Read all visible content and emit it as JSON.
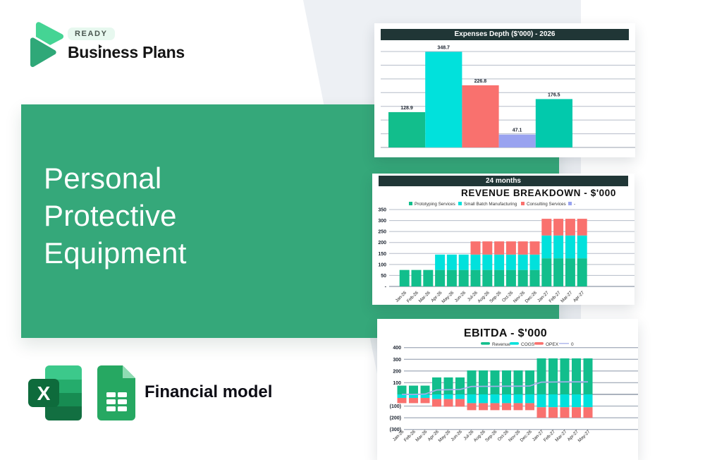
{
  "brand": {
    "badge": "READY",
    "name": "Business Plans"
  },
  "hero": {
    "title_lines": [
      "Personal",
      "Protective",
      "Equipment"
    ]
  },
  "footer": {
    "label": "Financial model",
    "icons": [
      "excel-icon",
      "google-sheets-icon"
    ]
  },
  "colors": {
    "panel_green": "#35a87a",
    "header_dark": "#203636",
    "background_gray": "#edf0f4",
    "bar_green": "#12be8c",
    "bar_cyan": "#01e1dc",
    "bar_red": "#f9716e",
    "bar_periwinkle": "#99a3f0",
    "bar_teal": "#02c9ac",
    "line_blue": "#a5aeea"
  },
  "chart_data": [
    {
      "type": "bar",
      "title": "Expenses Depth ($'000) - 2026",
      "values": [
        128.9,
        348.7,
        226.8,
        47.1,
        176.5
      ],
      "data_labels": [
        "128.9",
        "348.7",
        "226.8",
        "47.1",
        "176.5"
      ],
      "colors": [
        "#12be8c",
        "#01e1dc",
        "#f9716e",
        "#99a3f0",
        "#02c9ac"
      ],
      "ylim": [
        0,
        350
      ],
      "grid_step": 50,
      "grid": true,
      "legend": "none"
    },
    {
      "type": "bar-stacked",
      "header": "24 months",
      "title": "REVENUE BREAKDOWN - $'000",
      "categories": [
        "Jan-26",
        "Feb-26",
        "Mar-26",
        "Apr-26",
        "May-26",
        "Jun-26",
        "Jul-26",
        "Aug-26",
        "Sep-26",
        "Oct-26",
        "Nov-26",
        "Dec-26",
        "Jan-27",
        "Feb-27",
        "Mar-27",
        "Apr-27"
      ],
      "series": [
        {
          "name": "Prototyping Services",
          "color": "#12be8c",
          "values": [
            75,
            75,
            75,
            75,
            75,
            75,
            75,
            75,
            75,
            75,
            75,
            75,
            128,
            128,
            128,
            128
          ]
        },
        {
          "name": "Small Batch Manufacturing",
          "color": "#01e1dc",
          "values": [
            0,
            0,
            0,
            70,
            70,
            70,
            70,
            70,
            70,
            70,
            70,
            70,
            104,
            104,
            104,
            104
          ]
        },
        {
          "name": "Consulting Services",
          "color": "#f9716e",
          "values": [
            0,
            0,
            0,
            0,
            0,
            0,
            60,
            60,
            60,
            60,
            60,
            60,
            76,
            76,
            76,
            76
          ]
        },
        {
          "name": "-",
          "color": "#99a3f0",
          "values": [
            0,
            0,
            0,
            0,
            0,
            0,
            0,
            0,
            0,
            0,
            0,
            0,
            0,
            0,
            0,
            0
          ]
        }
      ],
      "yticks": [
        "350",
        "300",
        "250",
        "200",
        "150",
        "100",
        "50",
        "-"
      ],
      "ytick_values": [
        350,
        300,
        250,
        200,
        150,
        100,
        50,
        0
      ],
      "ylim": [
        0,
        350
      ],
      "grid": true,
      "legend_position": "top"
    },
    {
      "type": "bar-stacked-line",
      "title": "EBITDA - $'000",
      "categories": [
        "Jan-26",
        "Feb-26",
        "Mar-26",
        "Apr-26",
        "May-26",
        "Jun-26",
        "Jul-26",
        "Aug-26",
        "Sep-26",
        "Oct-26",
        "Nov-26",
        "Dec-26",
        "Jan-27",
        "Feb-27",
        "Mar-27",
        "Apr-27",
        "May-27"
      ],
      "series": [
        {
          "name": "Revenue",
          "color": "#12be8c",
          "values": [
            75,
            75,
            75,
            145,
            145,
            145,
            205,
            205,
            205,
            205,
            205,
            205,
            308,
            308,
            308,
            308,
            308
          ]
        },
        {
          "name": "COGS",
          "color": "#01e1dc",
          "values": [
            -30,
            -30,
            -30,
            -40,
            -40,
            -40,
            -75,
            -75,
            -75,
            -75,
            -75,
            -75,
            -110,
            -110,
            -110,
            -110,
            -110
          ]
        },
        {
          "name": "OPEX",
          "color": "#f9716e",
          "values": [
            -45,
            -45,
            -45,
            -65,
            -65,
            -65,
            -60,
            -60,
            -60,
            -60,
            -60,
            -60,
            -90,
            -90,
            -90,
            -90,
            -90
          ]
        }
      ],
      "line": {
        "name": "0",
        "color": "#a5aeea",
        "values": [
          0,
          0,
          3,
          38,
          40,
          42,
          68,
          69,
          69,
          70,
          70,
          72,
          105,
          106,
          107,
          107,
          107
        ]
      },
      "yticks": [
        "400",
        "300",
        "200",
        "100",
        "-",
        "(100)",
        "(200)",
        "(300)"
      ],
      "ytick_values": [
        400,
        300,
        200,
        100,
        0,
        -100,
        -200,
        -300
      ],
      "ylim": [
        -300,
        400
      ],
      "grid": true,
      "legend_position": "top"
    }
  ]
}
